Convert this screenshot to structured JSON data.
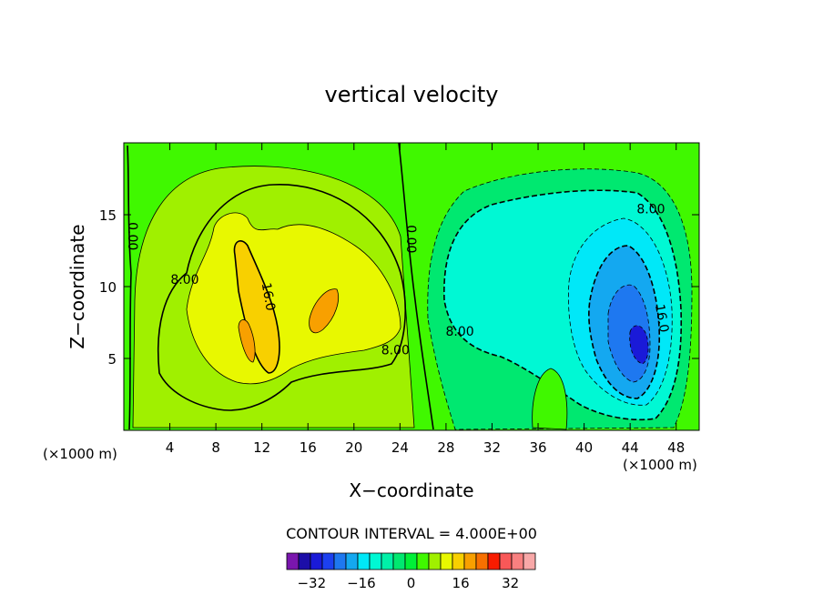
{
  "chart_data": {
    "type": "contour",
    "title": "vertical velocity",
    "xlabel": "X−coordinate",
    "ylabel": "Z−coordinate",
    "x_unit_label": "(×1000 m)",
    "x_unit_label_right": "(×1000 m)",
    "xlim": [
      0,
      50
    ],
    "ylim": [
      0,
      20
    ],
    "x_ticks": [
      4,
      8,
      12,
      16,
      20,
      24,
      28,
      32,
      36,
      40,
      44,
      48
    ],
    "y_ticks": [
      5,
      10,
      15
    ],
    "contour_interval_text": "CONTOUR INTERVAL =  4.000E+00",
    "contour_labels": [
      {
        "text": "0.00",
        "x": 0.8,
        "z": 13.5
      },
      {
        "text": "8.00",
        "x": 5.3,
        "z": 10.5
      },
      {
        "text": "16.0",
        "x": 12.6,
        "z": 9.3
      },
      {
        "text": "8.00",
        "x": 23.6,
        "z": 5.6
      },
      {
        "text": "0.00",
        "x": 25.0,
        "z": 13.3
      },
      {
        "text": "8.00",
        "x": 29.2,
        "z": 6.9
      },
      {
        "text": "8.00",
        "x": 45.8,
        "z": 15.4
      },
      {
        "text": "16.0",
        "x": 46.8,
        "z": 7.8
      }
    ],
    "updraft_peak": {
      "x": 12,
      "z": 9,
      "value": 24
    },
    "downdraft_peak": {
      "x": 45,
      "z": 6,
      "value": -30
    },
    "colorbar": {
      "levels": [
        -36,
        -32,
        -28,
        -24,
        -20,
        -16,
        -12,
        -8,
        -4,
        0,
        4,
        8,
        12,
        16,
        20,
        24,
        28,
        32,
        36
      ],
      "tick_labels": [
        "−32",
        "−16",
        "0",
        "16",
        "32"
      ],
      "tick_values": [
        -32,
        -16,
        0,
        16,
        32
      ],
      "colors": [
        "#7a16ae",
        "#1c0ea8",
        "#1a1ad8",
        "#1c40f0",
        "#1e78f0",
        "#14a8f0",
        "#00e8f8",
        "#00f8d4",
        "#00f0a8",
        "#00e870",
        "#00f038",
        "#40f800",
        "#a0f000",
        "#e8f800",
        "#f8d000",
        "#f8a000",
        "#f87000",
        "#f81c00",
        "#f85858",
        "#f88080",
        "#f8a8a8"
      ]
    }
  }
}
